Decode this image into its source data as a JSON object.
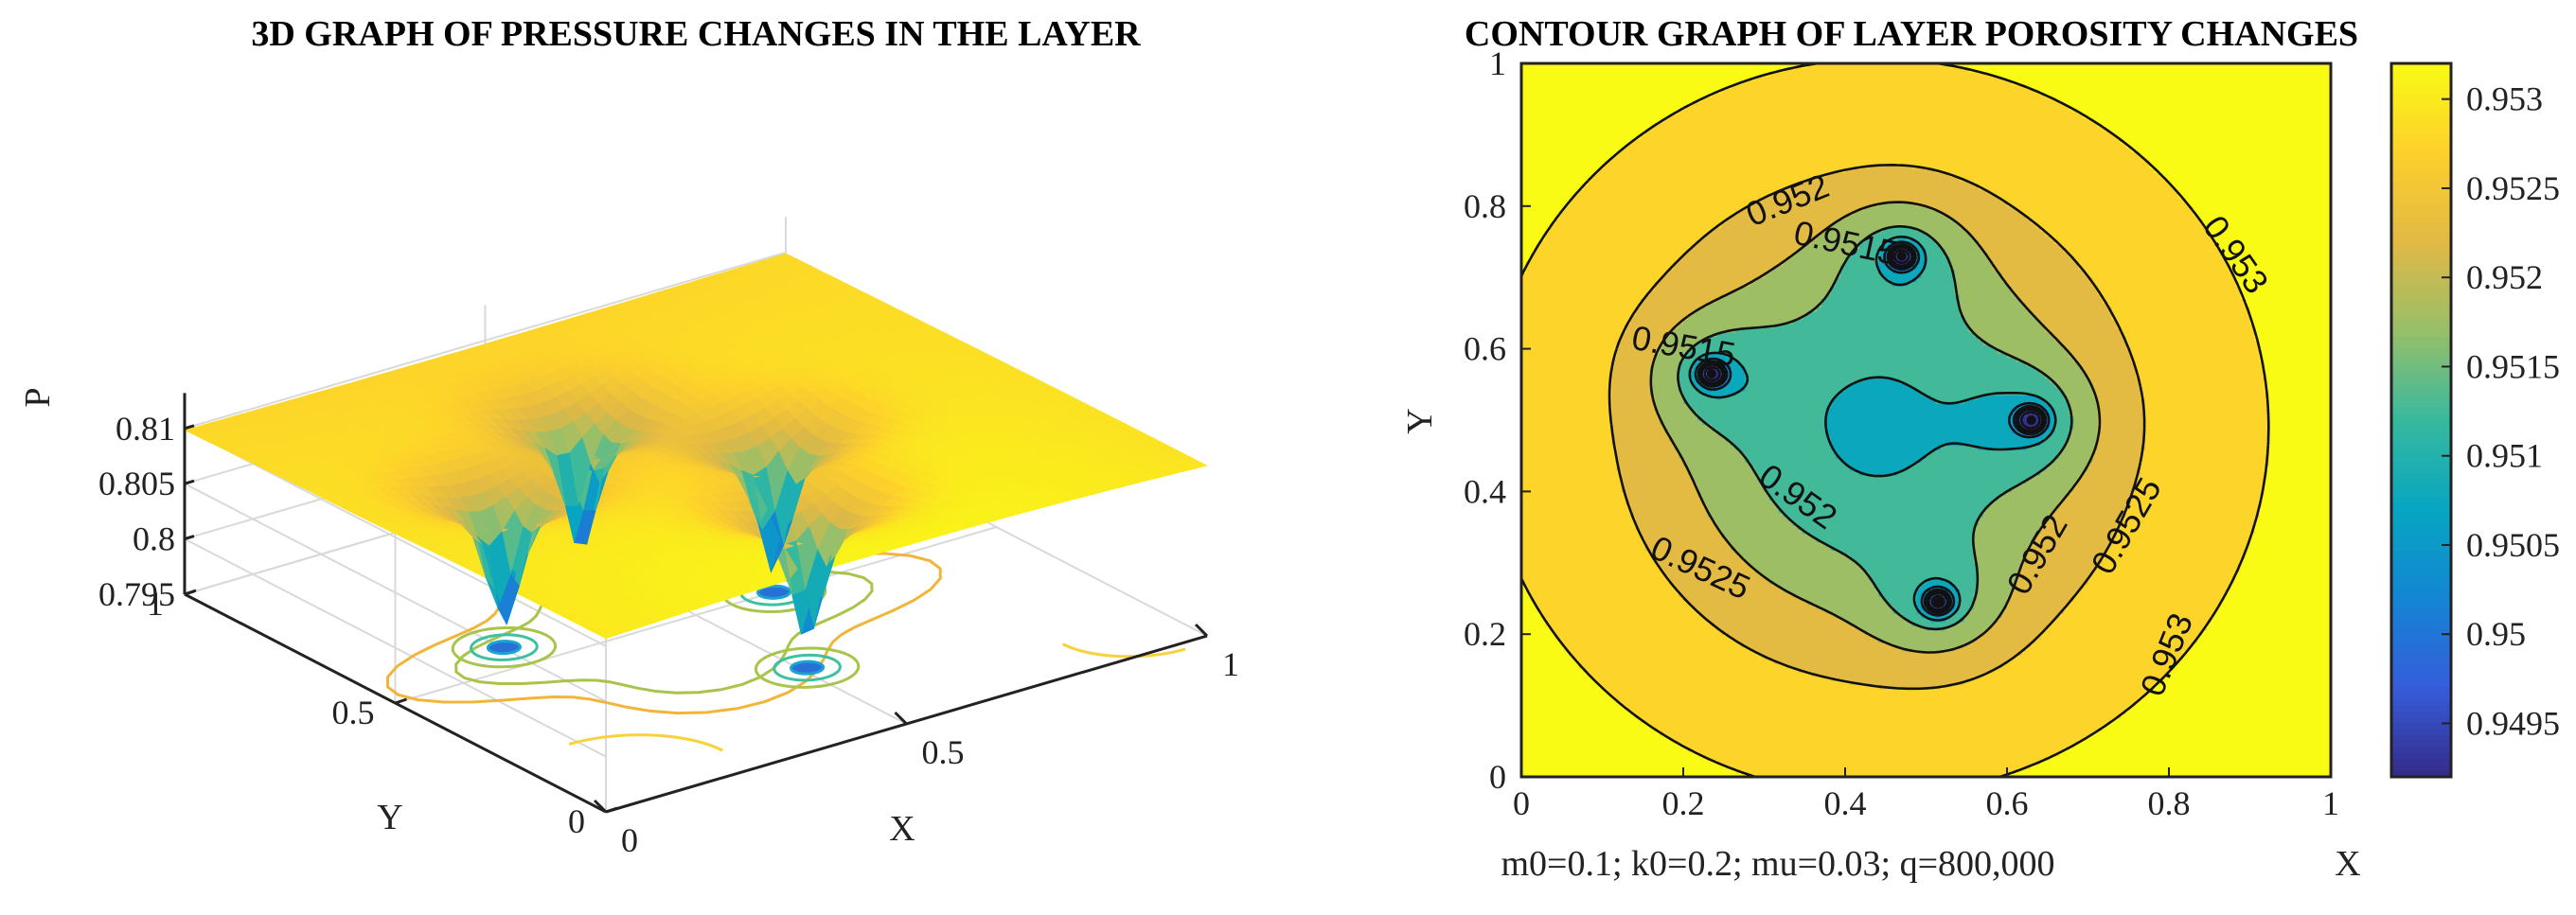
{
  "chart_data": [
    {
      "type": "surface",
      "title": "3D GRAPH OF PRESSURE CHANGES IN THE LAYER",
      "xlabel": "X",
      "ylabel": "Y",
      "zlabel": "P",
      "xlim": [
        0,
        1
      ],
      "ylim": [
        0,
        1
      ],
      "zlim": [
        0.795,
        0.812
      ],
      "x_ticks": [
        "0",
        "0.5",
        "1"
      ],
      "y_ticks": [
        "0",
        "0.5",
        "1"
      ],
      "z_ticks": [
        "0.795",
        "0.8",
        "0.805",
        "0.81"
      ],
      "background_level": 0.81,
      "wells": [
        {
          "x": 0.23,
          "y": 0.57
        },
        {
          "x": 0.47,
          "y": 0.73
        },
        {
          "x": 0.63,
          "y": 0.5
        },
        {
          "x": 0.51,
          "y": 0.25
        }
      ],
      "well_min_pressure": 0.7955,
      "colormap": "parula",
      "grid": true,
      "base_contours": true
    },
    {
      "type": "contour",
      "title": "CONTOUR GRAPH OF LAYER POROSITY CHANGES",
      "xlabel": "X",
      "ylabel": "Y",
      "xlim": [
        0,
        1
      ],
      "ylim": [
        0,
        1
      ],
      "x_ticks": [
        "0",
        "0.2",
        "0.4",
        "0.6",
        "0.8",
        "1"
      ],
      "y_ticks": [
        "0",
        "0.2",
        "0.4",
        "0.6",
        "0.8",
        "1"
      ],
      "contour_labels": [
        "0.952",
        "0.9515",
        "0.953",
        "0.9515",
        "0.952",
        "0.9525",
        "0.952",
        "0.9525",
        "0.953"
      ],
      "levels": [
        0.9495,
        0.95,
        0.9505,
        0.951,
        0.9515,
        0.952,
        0.9525,
        0.953
      ],
      "wells": [
        {
          "x": 0.235,
          "y": 0.565
        },
        {
          "x": 0.47,
          "y": 0.73
        },
        {
          "x": 0.63,
          "y": 0.5
        },
        {
          "x": 0.515,
          "y": 0.245
        }
      ],
      "colorbar_ticks": [
        "0.953",
        "0.9525",
        "0.952",
        "0.9515",
        "0.951",
        "0.9505",
        "0.95",
        "0.9495"
      ],
      "colorbar_range": [
        0.9492,
        0.9532
      ],
      "annotation": "m0=0.1;  k0=0.2;  mu=0.03;  q=800,000"
    }
  ]
}
